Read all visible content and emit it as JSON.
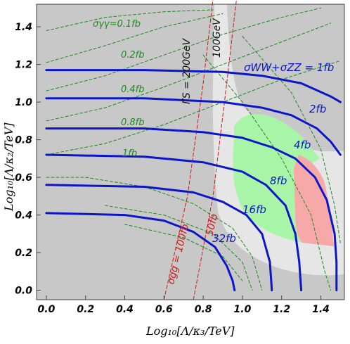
{
  "chart_data": {
    "type": "line",
    "title": "",
    "xlabel": "Log₁₀[Λ/κ₃/TeV]",
    "ylabel": "Log₁₀[Λ/κ₂/TeV]",
    "xlim": [
      -0.05,
      1.52
    ],
    "ylim": [
      -0.05,
      1.52
    ],
    "x_ticks": [
      "0.0",
      "0.2",
      "0.4",
      "0.6",
      "0.8",
      "1.0",
      "1.2",
      "1.4"
    ],
    "y_ticks": [
      "0.0",
      "0.2",
      "0.4",
      "0.6",
      "0.8",
      "1.0",
      "1.2",
      "1.4"
    ],
    "grid": false,
    "colors": {
      "blue": "#0b16c8",
      "green": "#1e8a1e",
      "red": "#cc1a1a",
      "gray_dark": "#c8c8c8",
      "gray_light": "#e6e6e6",
      "green_region": "#a8f5a8",
      "pink_region": "#f7a8a8"
    },
    "blue_contours": [
      {
        "label": "σWW+σZZ = 1fb",
        "points": [
          [
            0,
            1.17
          ],
          [
            0.5,
            1.17
          ],
          [
            0.9,
            1.16
          ],
          [
            1.1,
            1.14
          ],
          [
            1.3,
            1.1
          ],
          [
            1.45,
            1.03
          ],
          [
            1.5,
            1.0
          ]
        ]
      },
      {
        "label": "2fb",
        "points": [
          [
            0,
            1.02
          ],
          [
            0.5,
            1.02
          ],
          [
            0.9,
            1.0
          ],
          [
            1.1,
            0.97
          ],
          [
            1.25,
            0.93
          ],
          [
            1.38,
            0.86
          ],
          [
            1.45,
            0.79
          ],
          [
            1.5,
            0.72
          ]
        ]
      },
      {
        "label": "4fb",
        "points": [
          [
            0,
            0.86
          ],
          [
            0.5,
            0.86
          ],
          [
            0.8,
            0.84
          ],
          [
            1.0,
            0.81
          ],
          [
            1.15,
            0.76
          ],
          [
            1.27,
            0.7
          ],
          [
            1.37,
            0.6
          ],
          [
            1.43,
            0.48
          ],
          [
            1.47,
            0.3
          ],
          [
            1.48,
            0.15
          ],
          [
            1.48,
            0.0
          ]
        ]
      },
      {
        "label": "8fb",
        "points": [
          [
            0,
            0.72
          ],
          [
            0.5,
            0.71
          ],
          [
            0.8,
            0.68
          ],
          [
            1.0,
            0.63
          ],
          [
            1.12,
            0.56
          ],
          [
            1.22,
            0.45
          ],
          [
            1.27,
            0.3
          ],
          [
            1.29,
            0.15
          ],
          [
            1.3,
            0.0
          ]
        ]
      },
      {
        "label": "16fb",
        "points": [
          [
            0,
            0.56
          ],
          [
            0.5,
            0.55
          ],
          [
            0.75,
            0.52
          ],
          [
            0.9,
            0.47
          ],
          [
            1.02,
            0.4
          ],
          [
            1.1,
            0.3
          ],
          [
            1.14,
            0.15
          ],
          [
            1.15,
            0.0
          ]
        ]
      },
      {
        "label": "32fb",
        "points": [
          [
            0,
            0.41
          ],
          [
            0.4,
            0.4
          ],
          [
            0.6,
            0.37
          ],
          [
            0.75,
            0.31
          ],
          [
            0.86,
            0.23
          ],
          [
            0.92,
            0.13
          ],
          [
            0.95,
            0.05
          ],
          [
            0.96,
            0.0
          ]
        ]
      }
    ],
    "green_contours": [
      {
        "label": "σγγ=0.1fb",
        "points": [
          [
            0,
            1.38
          ],
          [
            0.3,
            1.45
          ],
          [
            0.6,
            1.48
          ],
          [
            0.85,
            1.49
          ]
        ]
      },
      {
        "label": "0.2fb",
        "points": [
          [
            0,
            1.21
          ],
          [
            0.3,
            1.3
          ],
          [
            0.6,
            1.4
          ],
          [
            0.9,
            1.47
          ]
        ]
      },
      {
        "label": "0.4fb",
        "points": [
          [
            0,
            1.06
          ],
          [
            0.3,
            1.14
          ],
          [
            0.6,
            1.25
          ],
          [
            0.9,
            1.36
          ],
          [
            1.2,
            1.45
          ],
          [
            1.4,
            1.5
          ]
        ]
      },
      {
        "label": "0.8fb",
        "points": [
          [
            0,
            0.9
          ],
          [
            0.3,
            0.97
          ],
          [
            0.6,
            1.08
          ],
          [
            0.9,
            1.2
          ],
          [
            1.2,
            1.32
          ],
          [
            1.45,
            1.42
          ]
        ]
      },
      {
        "label": "1fb",
        "points": [
          [
            0,
            0.72
          ],
          [
            0.3,
            0.78
          ],
          [
            0.6,
            0.88
          ],
          [
            0.9,
            1.0
          ],
          [
            1.2,
            1.12
          ],
          [
            1.5,
            1.22
          ]
        ]
      },
      {
        "label": "",
        "points": [
          [
            0,
            0.6
          ],
          [
            0.2,
            0.6
          ],
          [
            0.5,
            0.55
          ],
          [
            0.75,
            0.46
          ],
          [
            0.95,
            0.33
          ],
          [
            1.05,
            0.18
          ],
          [
            1.1,
            0.0
          ]
        ]
      },
      {
        "label": "",
        "points": [
          [
            0.3,
            0.45
          ],
          [
            0.6,
            0.4
          ],
          [
            0.85,
            0.3
          ],
          [
            1.0,
            0.15
          ],
          [
            1.05,
            0.0
          ]
        ]
      },
      {
        "label": "",
        "points": [
          [
            0.8,
            1.25
          ],
          [
            1.0,
            1.0
          ],
          [
            1.2,
            0.7
          ],
          [
            1.35,
            0.4
          ],
          [
            1.42,
            0.1
          ],
          [
            1.45,
            0.0
          ]
        ]
      },
      {
        "label": "",
        "points": [
          [
            1.0,
            1.35
          ],
          [
            1.25,
            1.05
          ],
          [
            1.4,
            0.75
          ],
          [
            1.47,
            0.45
          ],
          [
            1.5,
            0.25
          ]
        ]
      },
      {
        "label": "",
        "points": [
          [
            0.4,
            0.35
          ],
          [
            0.7,
            0.28
          ],
          [
            0.9,
            0.18
          ],
          [
            1.0,
            0.05
          ]
        ]
      }
    ],
    "red_lines": [
      {
        "label": "σgg = 100fb",
        "points": [
          [
            0.6,
            -0.05
          ],
          [
            0.72,
            0.5
          ],
          [
            0.8,
            1.1
          ],
          [
            0.85,
            1.55
          ]
        ]
      },
      {
        "label": "50fb",
        "points": [
          [
            0.75,
            -0.05
          ],
          [
            0.85,
            0.5
          ],
          [
            0.92,
            1.1
          ],
          [
            0.97,
            1.55
          ]
        ]
      }
    ],
    "black_labels": [
      {
        "label": "ΓS = 200GeV"
      },
      {
        "label": "100GeV"
      }
    ],
    "regions": {
      "dark_gray": "excluded",
      "light_gray": "allowed band",
      "green": "region",
      "pink": "region"
    }
  }
}
